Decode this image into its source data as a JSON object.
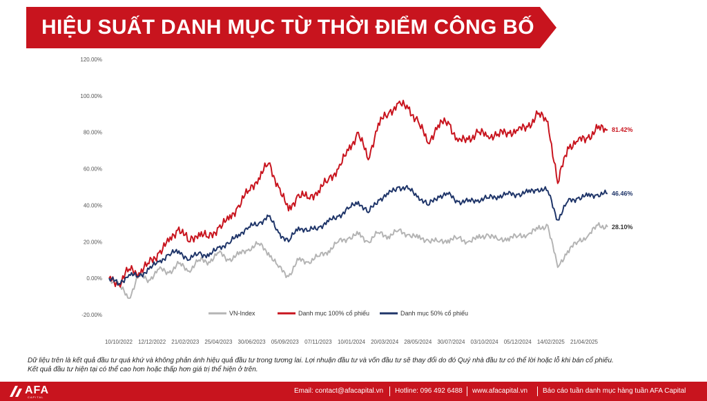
{
  "title": "HIỆU SUẤT DANH MỤC TỪ THỜI ĐIỂM CÔNG BỐ",
  "colors": {
    "red": "#c8141e",
    "navy": "#1f3569",
    "gray": "#b4b4b4",
    "axis_text": "#555555"
  },
  "chart_data": {
    "type": "line",
    "ylim": [
      -20,
      120
    ],
    "yticks": [
      "120.00%",
      "100.00%",
      "80.00%",
      "60.00%",
      "40.00%",
      "20.00%",
      "0.00%",
      "-20.00%"
    ],
    "ytick_values": [
      120,
      100,
      80,
      60,
      40,
      20,
      0,
      -20
    ],
    "x_tick_labels": [
      "10/10/2022",
      "12/12/2022",
      "21/02/2023",
      "25/04/2023",
      "30/06/2023",
      "05/09/2023",
      "07/11/2023",
      "10/01/2024",
      "20/03/2024",
      "28/05/2024",
      "30/07/2024",
      "03/10/2024",
      "05/12/2024",
      "14/02/2025",
      "21/04/2025"
    ],
    "grid": false,
    "legend_position": "bottom",
    "series": [
      {
        "name": "VN-Index",
        "color": "#b4b4b4",
        "end_label": "28.10%",
        "x": [
          0,
          2,
          4,
          6,
          8,
          10,
          12,
          14,
          16,
          18,
          20,
          22,
          24,
          26,
          28,
          30,
          32,
          34,
          36,
          38,
          40,
          42,
          44,
          46,
          48,
          50,
          52,
          54,
          56,
          58,
          60,
          62,
          64,
          66,
          68,
          70,
          72,
          74,
          76,
          78,
          80,
          82,
          84,
          86,
          88,
          90,
          92,
          94,
          96,
          98,
          100
        ],
        "values": [
          0,
          -4,
          -11,
          2,
          -1,
          5,
          3,
          8,
          4,
          10,
          9,
          14,
          10,
          13,
          16,
          19,
          14,
          6,
          1,
          10,
          9,
          12,
          15,
          20,
          22,
          24,
          20,
          25,
          23,
          26,
          24,
          22,
          21,
          20,
          21,
          22,
          20,
          22,
          24,
          21,
          22,
          23,
          24,
          27,
          29,
          6,
          15,
          20,
          23,
          29,
          28.1
        ]
      },
      {
        "name": "Danh mục 100% cổ phiếu",
        "color": "#c8141e",
        "end_label": "81.42%",
        "x": [
          0,
          2,
          4,
          6,
          8,
          10,
          12,
          14,
          16,
          18,
          20,
          22,
          24,
          26,
          28,
          30,
          32,
          34,
          36,
          38,
          40,
          42,
          44,
          46,
          48,
          50,
          52,
          54,
          56,
          58,
          60,
          62,
          64,
          66,
          68,
          70,
          72,
          74,
          76,
          78,
          80,
          82,
          84,
          86,
          88,
          90,
          92,
          94,
          96,
          98,
          100
        ],
        "values": [
          0,
          -3,
          5,
          3,
          8,
          14,
          20,
          28,
          20,
          25,
          22,
          28,
          32,
          40,
          48,
          55,
          63,
          50,
          37,
          46,
          44,
          48,
          54,
          60,
          70,
          80,
          65,
          85,
          90,
          96,
          93,
          86,
          74,
          84,
          86,
          75,
          76,
          80,
          78,
          79,
          80,
          81,
          83,
          90,
          86,
          52,
          72,
          75,
          77,
          82,
          81.42
        ]
      },
      {
        "name": "Danh mục 50% cổ phiếu",
        "color": "#1f3569",
        "end_label": "46.46%",
        "x": [
          0,
          2,
          4,
          6,
          8,
          10,
          12,
          14,
          16,
          18,
          20,
          22,
          24,
          26,
          28,
          30,
          32,
          34,
          36,
          38,
          40,
          42,
          44,
          46,
          48,
          50,
          52,
          54,
          56,
          58,
          60,
          62,
          64,
          66,
          68,
          70,
          72,
          74,
          76,
          78,
          80,
          82,
          84,
          86,
          88,
          90,
          92,
          94,
          96,
          98,
          100
        ],
        "values": [
          0,
          -3,
          2,
          1,
          5,
          9,
          13,
          15,
          10,
          14,
          12,
          17,
          19,
          24,
          28,
          30,
          34,
          25,
          20,
          28,
          26,
          28,
          31,
          34,
          38,
          42,
          36,
          43,
          46,
          50,
          49,
          45,
          40,
          45,
          46,
          42,
          42,
          43,
          44,
          45,
          46,
          46,
          47,
          49,
          48,
          32,
          42,
          44,
          45,
          46,
          46.46
        ]
      }
    ]
  },
  "disclaimer": {
    "line1": "Dữ liệu trên là kết quả đầu tư quá khứ và không phản ánh hiệu quả đầu tư trong tương lai. Lợi nhuận đầu tư và vốn đầu tư sẽ thay đổi do đó Quý nhà đầu tư có thể lời hoặc lỗ khi bán cổ phiếu.",
    "line2": "Kết quả đầu tư hiện tại có thể cao hơn hoặc thấp hơn giá trị thể hiện ở trên."
  },
  "footer": {
    "logo": "AFA",
    "logo_sub": "CAPITAL",
    "email": "Email: contact@afacapital.vn",
    "hotline": "Hotline: 096 492 6488",
    "website": "www.afacapital.vn",
    "report": "Báo cáo tuần danh mục hàng tuần AFA Capital"
  }
}
